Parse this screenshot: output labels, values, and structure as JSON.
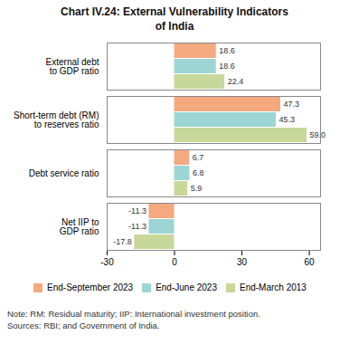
{
  "chart_data": {
    "type": "bar",
    "orientation": "horizontal",
    "title": "Chart IV.24: External Vulnerability Indicators\nof India",
    "categories": [
      "External debt\nto GDP ratio",
      "Short-term debt (RM)\nto reserves ratio",
      "Debt service ratio",
      "Net IIP to\nGDP ratio"
    ],
    "series": [
      {
        "name": "End-September 2023",
        "color": "#F4A97F",
        "values": [
          18.6,
          47.3,
          6.7,
          -11.3
        ]
      },
      {
        "name": "End-June 2023",
        "color": "#9DD4D4",
        "values": [
          18.6,
          45.3,
          6.8,
          -11.3
        ]
      },
      {
        "name": "End-March 2013",
        "color": "#C8D89A",
        "values": [
          22.4,
          59.0,
          5.9,
          -17.8
        ],
        "value_labels": [
          "22.4",
          "59.0",
          "5.9",
          "-17.8"
        ]
      }
    ],
    "xlim": [
      -30,
      65
    ],
    "xticks": [
      -30,
      0,
      30,
      60
    ],
    "data_labels": true,
    "grid": false,
    "legend": "bottom",
    "annotations": [
      "Note: RM: Residual maturity; IIP: International investment position.",
      "Sources: RBI; and Government of India."
    ]
  }
}
